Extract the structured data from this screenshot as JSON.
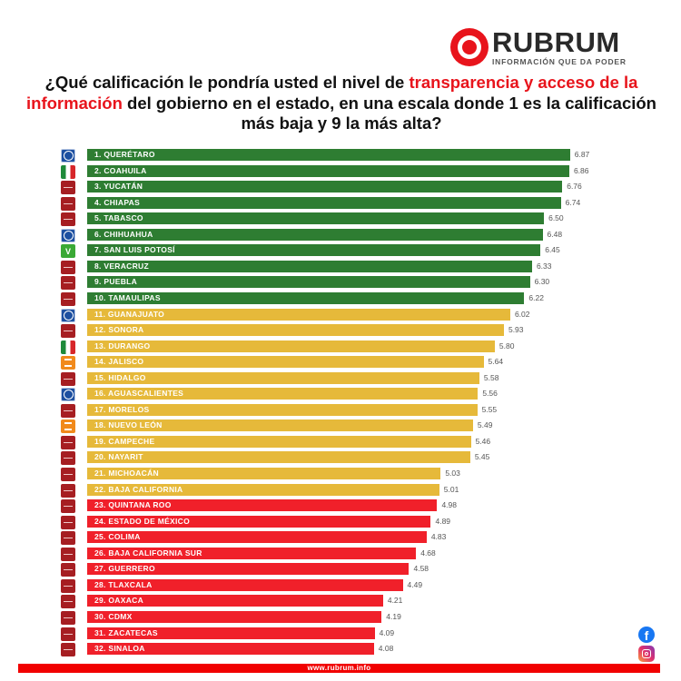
{
  "brand": {
    "name": "RUBRUM",
    "tagline": "INFORMACIÓN QUE DA PODER",
    "website": "www.rubrum.info",
    "accent_color": "#e8141c"
  },
  "title": {
    "part1": "¿Qué calificación le pondría usted el nivel de ",
    "highlight": "transparencia y acceso de la información",
    "part2": " del gobierno en el estado, en una escala donde 1 es la calificación más baja y 9 la más alta?"
  },
  "social": {
    "facebook_icon": "facebook-icon",
    "instagram_icon": "instagram-icon"
  },
  "colors": {
    "green": "#2e7d32",
    "yellow": "#e6b93a",
    "red": "#f0202a"
  },
  "chart_data": {
    "type": "bar",
    "orientation": "horizontal",
    "title": "¿Qué calificación le pondría usted el nivel de transparencia y acceso de la información del gobierno en el estado, en una escala donde 1 es la calificación más baja y 9 la más alta?",
    "xlabel": "",
    "ylabel": "",
    "scale": [
      1,
      9
    ],
    "grid": false,
    "legend": "none",
    "categories": [
      "1. QUERÉTARO",
      "2. COAHUILA",
      "3. YUCATÁN",
      "4. CHIAPAS",
      "5. TABASCO",
      "6. CHIHUAHUA",
      "7. SAN LUIS POTOSÍ",
      "8. VERACRUZ",
      "9. PUEBLA",
      "10. TAMAULIPAS",
      "11. GUANAJUATO",
      "12. SONORA",
      "13. DURANGO",
      "14. JALISCO",
      "15. HIDALGO",
      "16. AGUASCALIENTES",
      "17. MORELOS",
      "18. NUEVO LEÓN",
      "19. CAMPECHE",
      "20. NAYARIT",
      "21. MICHOACÁN",
      "22. BAJA CALIFORNIA",
      "23. QUINTANA ROO",
      "24. ESTADO DE MÉXICO",
      "25. COLIMA",
      "26. BAJA CALIFORNIA SUR",
      "27. GUERRERO",
      "28. TLAXCALA",
      "29. OAXACA",
      "30. CDMX",
      "31. ZACATECAS",
      "32. SINALOA"
    ],
    "values": [
      6.87,
      6.86,
      6.76,
      6.74,
      6.5,
      6.48,
      6.45,
      6.33,
      6.3,
      6.22,
      6.02,
      5.93,
      5.8,
      5.64,
      5.58,
      5.56,
      5.55,
      5.49,
      5.46,
      5.45,
      5.03,
      5.01,
      4.98,
      4.89,
      4.83,
      4.68,
      4.58,
      4.49,
      4.21,
      4.19,
      4.09,
      4.08
    ],
    "value_labels": [
      "6.87",
      "6.86",
      "6.76",
      "6.74",
      "6.50",
      "6.48",
      "6.45",
      "6.33",
      "6.30",
      "6.22",
      "6.02",
      "5.93",
      "5.80",
      "5.64",
      "5.58",
      "5.56",
      "5.55",
      "5.49",
      "5.46",
      "5.45",
      "5.03",
      "5.01",
      "4.98",
      "4.89",
      "4.83",
      "4.68",
      "4.58",
      "4.49",
      "4.21",
      "4.19",
      "4.09",
      "4.08"
    ],
    "bar_colors": [
      "green",
      "green",
      "green",
      "green",
      "green",
      "green",
      "green",
      "green",
      "green",
      "green",
      "yellow",
      "yellow",
      "yellow",
      "yellow",
      "yellow",
      "yellow",
      "yellow",
      "yellow",
      "yellow",
      "yellow",
      "yellow",
      "yellow",
      "red",
      "red",
      "red",
      "red",
      "red",
      "red",
      "red",
      "red",
      "red",
      "red"
    ],
    "parties": [
      "pan",
      "pri",
      "morena",
      "morena",
      "morena",
      "pan",
      "verde",
      "morena",
      "morena",
      "morena",
      "pan",
      "morena",
      "pri",
      "mc",
      "morena",
      "pan",
      "morena",
      "mc",
      "morena",
      "morena",
      "morena",
      "morena",
      "morena",
      "morena",
      "morena",
      "morena",
      "morena",
      "morena",
      "morena",
      "morena",
      "morena",
      "morena"
    ]
  }
}
